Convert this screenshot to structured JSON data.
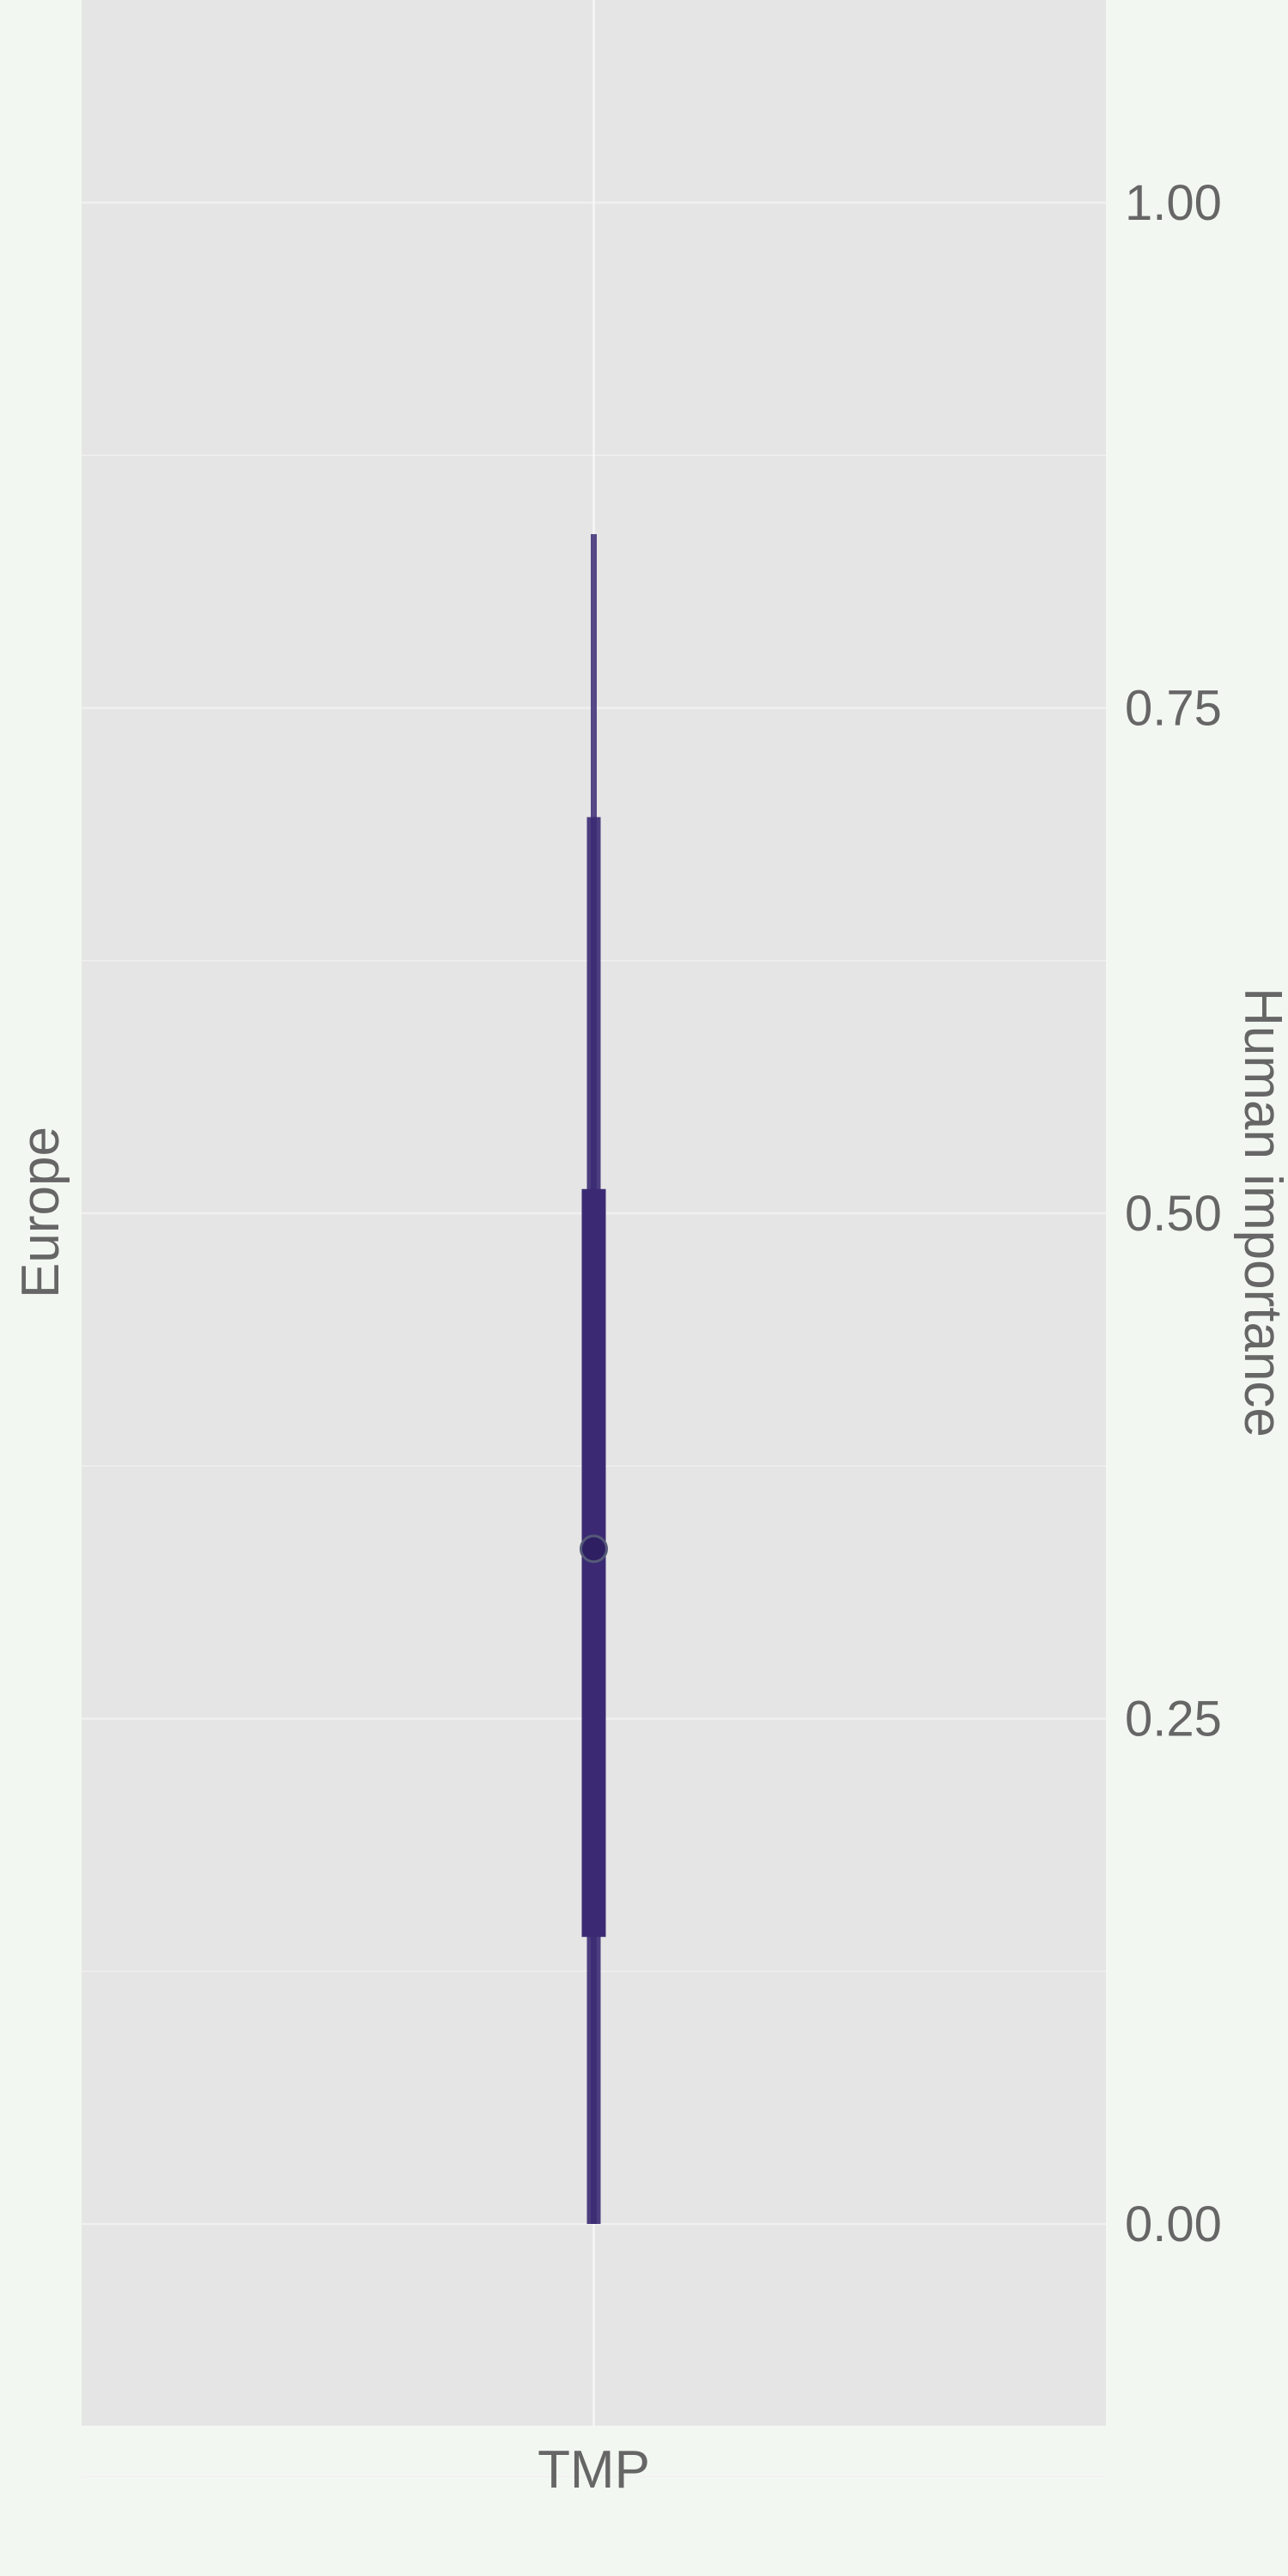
{
  "chart_data": {
    "type": "interval",
    "facet_label": "Europe",
    "ylabel": "Human importance",
    "xlabel": "",
    "categories": [
      "TMP"
    ],
    "ylim": [
      -0.1,
      1.1
    ],
    "y_ticks": [
      0.0,
      0.25,
      0.5,
      0.75,
      1.0
    ],
    "y_tick_labels": [
      "0.00",
      "0.25",
      "0.50",
      "0.75",
      "1.00"
    ],
    "y_axis_side": "right",
    "grid": true,
    "series": [
      {
        "category": "TMP",
        "point": 0.334,
        "interval_inner": [
          0.142,
          0.512
        ],
        "interval_mid": [
          0.0,
          0.696
        ],
        "interval_outer": [
          0.0,
          0.836
        ]
      }
    ],
    "colors": {
      "panel": "#e5e5e5",
      "background": "#f3f7f1",
      "grid": "#f0f0f0",
      "interval": "#3b2a73",
      "point": "#2e1f63"
    }
  }
}
